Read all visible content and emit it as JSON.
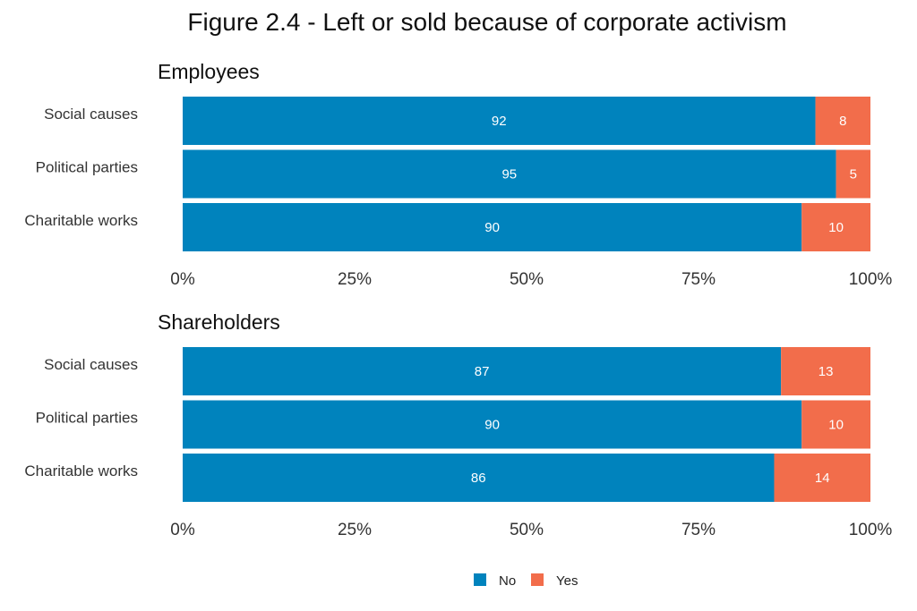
{
  "chart_data": {
    "type": "bar",
    "orientation": "horizontal",
    "stacked": true,
    "title": "Figure 2.4 -  Left or sold because of corporate activism",
    "legend": {
      "placement": "bottom",
      "entries": [
        "No",
        "Yes"
      ]
    },
    "colors": {
      "No": "#0083BD",
      "Yes": "#F26D4B"
    },
    "xlim": [
      0,
      100
    ],
    "x_ticks": [
      "0%",
      "25%",
      "50%",
      "75%",
      "100%"
    ],
    "grid": false,
    "panels": [
      {
        "title": "Employees",
        "categories": [
          "Social causes",
          "Political parties",
          "Charitable works"
        ],
        "series": [
          {
            "name": "No",
            "values": [
              92,
              95,
              90
            ]
          },
          {
            "name": "Yes",
            "values": [
              8,
              5,
              10
            ]
          }
        ]
      },
      {
        "title": "Shareholders",
        "categories": [
          "Social causes",
          "Political parties",
          "Charitable works"
        ],
        "series": [
          {
            "name": "No",
            "values": [
              87,
              90,
              86
            ]
          },
          {
            "name": "Yes",
            "values": [
              13,
              10,
              14
            ]
          }
        ]
      }
    ]
  }
}
